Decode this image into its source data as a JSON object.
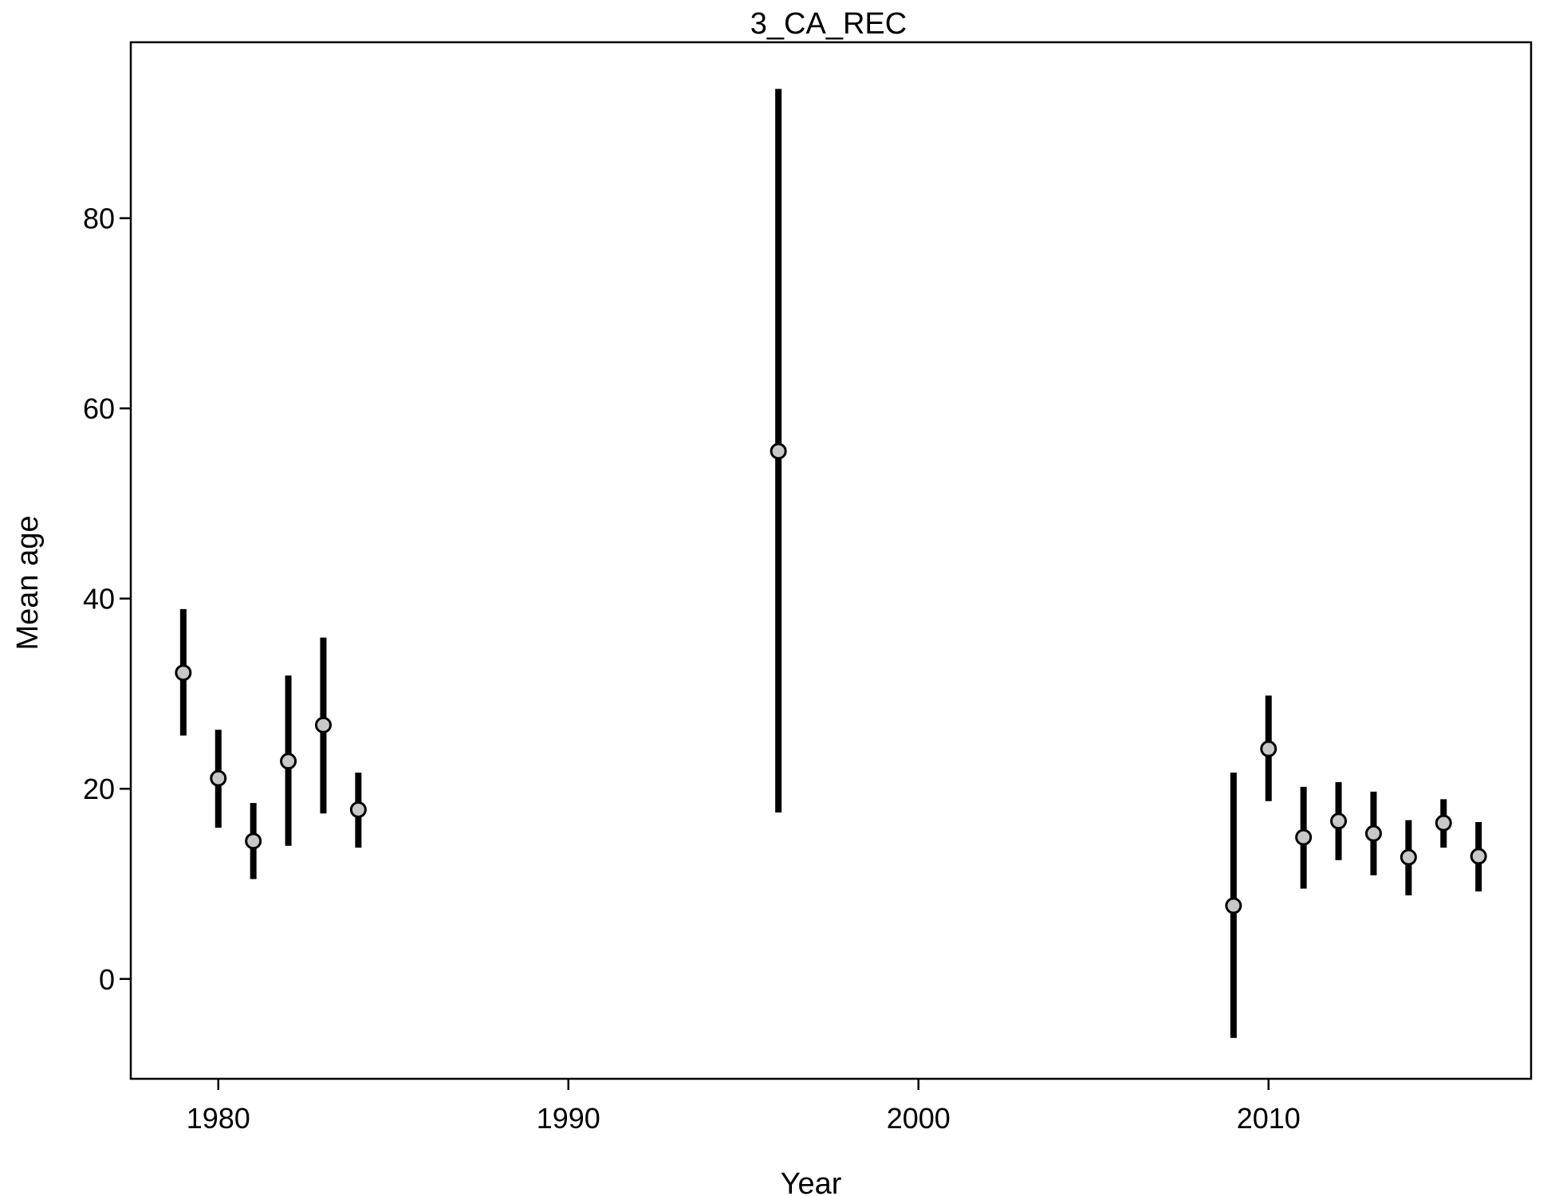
{
  "chart_data": {
    "type": "scatter",
    "title": "3_CA_REC",
    "xlabel": "Year",
    "ylabel": "Mean age",
    "xlim": [
      1977.5,
      2017.5
    ],
    "ylim": [
      -10.5,
      98.5
    ],
    "xticks": [
      1980,
      1990,
      2000,
      2010
    ],
    "yticks": [
      0,
      20,
      40,
      60,
      80
    ],
    "grid": false,
    "legend": "none",
    "marker": {
      "shape": "circle",
      "fill": "#c8c8c8",
      "stroke": "#000000"
    },
    "errorbar_color": "#000000",
    "points": [
      {
        "x": 1979,
        "y": 32.2,
        "lower": 25.6,
        "upper": 38.9
      },
      {
        "x": 1980,
        "y": 21.1,
        "lower": 15.9,
        "upper": 26.2
      },
      {
        "x": 1981,
        "y": 14.5,
        "lower": 10.5,
        "upper": 18.5
      },
      {
        "x": 1982,
        "y": 22.9,
        "lower": 14.0,
        "upper": 31.9
      },
      {
        "x": 1983,
        "y": 26.7,
        "lower": 17.4,
        "upper": 35.9
      },
      {
        "x": 1984,
        "y": 17.8,
        "lower": 13.8,
        "upper": 21.7
      },
      {
        "x": 1996,
        "y": 55.5,
        "lower": 17.5,
        "upper": 93.6
      },
      {
        "x": 2009,
        "y": 7.7,
        "lower": -6.2,
        "upper": 21.7
      },
      {
        "x": 2010,
        "y": 24.2,
        "lower": 18.7,
        "upper": 29.8
      },
      {
        "x": 2011,
        "y": 14.9,
        "lower": 9.5,
        "upper": 20.2
      },
      {
        "x": 2012,
        "y": 16.6,
        "lower": 12.5,
        "upper": 20.7
      },
      {
        "x": 2013,
        "y": 15.3,
        "lower": 10.9,
        "upper": 19.7
      },
      {
        "x": 2014,
        "y": 12.8,
        "lower": 8.8,
        "upper": 16.7
      },
      {
        "x": 2015,
        "y": 16.4,
        "lower": 13.8,
        "upper": 18.9
      },
      {
        "x": 2016,
        "y": 12.9,
        "lower": 9.2,
        "upper": 16.5
      }
    ]
  }
}
